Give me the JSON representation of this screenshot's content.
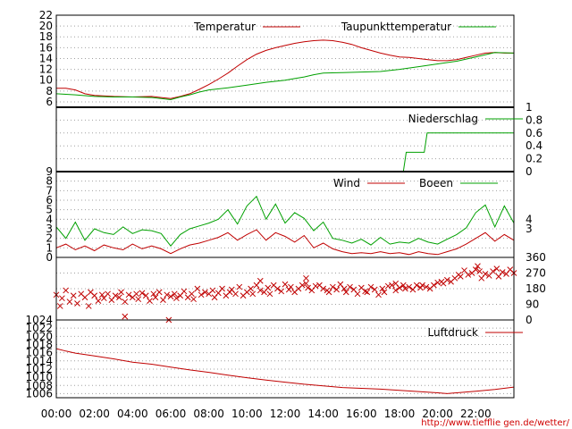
{
  "colors": {
    "background": "#ffffff",
    "axis": "#000000",
    "grid": "#a0a0a0",
    "temperature": "#c00000",
    "dewpoint": "#00a000",
    "precipitation": "#00a000",
    "wind": "#c00000",
    "gusts": "#00a000",
    "direction": "#c00000",
    "pressure": "#c00000",
    "footer": "#d00000"
  },
  "x_axis": {
    "range_hours": [
      0,
      24
    ],
    "tick_labels": [
      "00:00",
      "02:00",
      "04:00",
      "06:00",
      "08:00",
      "10:00",
      "12:00",
      "14:00",
      "16:00",
      "18:00",
      "20:00",
      "22:00"
    ]
  },
  "footer": {
    "url": "http://www.tiefflie gen.de/wetter/"
  },
  "chart_data": [
    {
      "type": "line",
      "panel": "temperature",
      "ylim": [
        5,
        22
      ],
      "left_ticks": [
        "6",
        "8",
        "10",
        "12",
        "14",
        "16",
        "18",
        "20",
        "22"
      ],
      "grid": true,
      "legend": "top-right",
      "series": [
        {
          "name": "Temperatur",
          "x": [
            0,
            0.5,
            1,
            1.5,
            2,
            3,
            4,
            5,
            5.5,
            6,
            6.5,
            7,
            7.5,
            8,
            8.5,
            9,
            9.5,
            10,
            10.5,
            11,
            11.5,
            12,
            12.5,
            13,
            13.5,
            14,
            14.5,
            15,
            15.5,
            16,
            16.5,
            17,
            17.5,
            18,
            18.5,
            19,
            19.5,
            20,
            20.5,
            21,
            21.5,
            22,
            22.5,
            23,
            23.5,
            24
          ],
          "values": [
            8.5,
            8.5,
            8.2,
            7.5,
            7.2,
            7.0,
            6.9,
            7.0,
            6.8,
            6.6,
            7.0,
            7.5,
            8.3,
            9.2,
            10.2,
            11.3,
            12.6,
            13.8,
            14.8,
            15.5,
            16.0,
            16.4,
            16.8,
            17.1,
            17.3,
            17.4,
            17.3,
            17.0,
            16.6,
            16.0,
            15.5,
            15.0,
            14.6,
            14.3,
            14.2,
            14.0,
            13.8,
            13.6,
            13.6,
            13.8,
            14.2,
            14.6,
            15.0,
            15.1,
            15.0,
            15.0
          ]
        },
        {
          "name": "Taupunkttemperatur",
          "x": [
            0,
            1,
            2,
            3,
            4,
            5,
            5.5,
            6,
            6.5,
            7,
            7.5,
            8,
            9,
            10,
            11,
            12,
            12.5,
            13,
            13.5,
            14,
            15,
            16,
            17,
            18,
            19,
            20,
            21,
            22,
            23,
            24
          ],
          "values": [
            7.5,
            7.3,
            7.0,
            6.9,
            6.9,
            6.8,
            6.6,
            6.4,
            6.9,
            7.3,
            7.8,
            8.2,
            8.6,
            9.1,
            9.6,
            10.0,
            10.3,
            10.6,
            11.0,
            11.3,
            11.4,
            11.5,
            11.6,
            12.0,
            12.5,
            13.0,
            13.5,
            14.3,
            15.1,
            15.0
          ]
        }
      ]
    },
    {
      "type": "line",
      "panel": "precipitation",
      "ylim": [
        0,
        1
      ],
      "right_ticks": [
        "0",
        "0.2",
        "0.4",
        "0.6",
        "0.8",
        "1"
      ],
      "grid": true,
      "legend": "top-right",
      "series": [
        {
          "name": "Niederschlag",
          "x": [
            0,
            18.2,
            18.35,
            19.3,
            19.45,
            24
          ],
          "values": [
            0,
            0,
            0.3,
            0.3,
            0.6,
            0.6
          ]
        }
      ]
    },
    {
      "type": "line",
      "panel": "wind",
      "ylim": [
        0,
        9
      ],
      "left_ticks": [
        "0",
        "1",
        "2",
        "3",
        "4",
        "5",
        "6",
        "7",
        "8",
        "9"
      ],
      "right_ticks": [
        "3",
        "4"
      ],
      "grid": true,
      "legend": "top-right",
      "series": [
        {
          "name": "Wind",
          "x": [
            0,
            0.5,
            1,
            1.5,
            2,
            2.5,
            3,
            3.5,
            4,
            4.5,
            5,
            5.5,
            6,
            6.5,
            7,
            7.5,
            8,
            8.5,
            9,
            9.5,
            10,
            10.5,
            11,
            11.5,
            12,
            12.5,
            13,
            13.5,
            14,
            14.5,
            15,
            15.5,
            16,
            16.5,
            17,
            17.5,
            18,
            18.5,
            19,
            19.5,
            20,
            20.5,
            21,
            21.5,
            22,
            22.5,
            23,
            23.5,
            24
          ],
          "values": [
            1.0,
            1.4,
            0.8,
            1.2,
            0.7,
            1.3,
            1.0,
            0.8,
            1.4,
            0.9,
            1.2,
            0.9,
            0.4,
            0.9,
            1.3,
            1.5,
            1.8,
            2.1,
            2.6,
            1.8,
            2.4,
            2.9,
            1.8,
            2.6,
            2.2,
            1.6,
            2.3,
            1.0,
            1.5,
            0.9,
            0.6,
            0.4,
            0.5,
            0.4,
            0.6,
            0.4,
            0.5,
            0.3,
            0.6,
            0.4,
            0.3,
            0.6,
            0.9,
            1.4,
            2.0,
            2.6,
            1.7,
            2.4,
            1.8
          ]
        },
        {
          "name": "Boeen",
          "x": [
            0,
            0.5,
            1,
            1.5,
            2,
            2.5,
            3,
            3.5,
            4,
            4.5,
            5,
            5.5,
            6,
            6.5,
            7,
            7.5,
            8,
            8.5,
            9,
            9.5,
            10,
            10.5,
            11,
            11.5,
            12,
            12.5,
            13,
            13.5,
            14,
            14.5,
            15,
            15.5,
            16,
            16.5,
            17,
            17.5,
            18,
            18.5,
            19,
            19.5,
            20,
            20.5,
            21,
            21.5,
            22,
            22.5,
            23,
            23.5,
            24
          ],
          "values": [
            3.2,
            2.0,
            3.7,
            1.8,
            3.0,
            2.6,
            2.4,
            3.2,
            2.5,
            2.9,
            2.8,
            2.5,
            1.2,
            2.4,
            3.0,
            3.3,
            3.6,
            4.0,
            5.0,
            3.5,
            5.4,
            6.4,
            4.0,
            5.6,
            3.6,
            4.7,
            4.1,
            2.8,
            3.7,
            2.0,
            1.8,
            1.5,
            1.9,
            1.3,
            2.1,
            1.4,
            1.6,
            1.5,
            2.0,
            1.6,
            1.4,
            1.9,
            2.4,
            3.1,
            4.7,
            5.5,
            3.2,
            5.4,
            3.6
          ]
        }
      ]
    },
    {
      "type": "scatter",
      "panel": "wind direction",
      "ylim": [
        0,
        360
      ],
      "right_ticks": [
        "0",
        "90",
        "180",
        "270",
        "360"
      ],
      "grid": true,
      "series": [
        {
          "x": [
            0.0,
            0.2,
            0.3,
            0.5,
            0.7,
            0.9,
            1.1,
            1.3,
            1.5,
            1.7,
            1.8,
            2.0,
            2.2,
            2.4,
            2.5,
            2.7,
            2.9,
            3.1,
            3.3,
            3.4,
            3.6,
            3.8,
            4.0,
            4.2,
            4.3,
            4.5,
            4.7,
            4.9,
            5.1,
            5.2,
            5.4,
            5.6,
            5.8,
            6.0,
            6.2,
            6.3,
            6.5,
            6.7,
            6.9,
            7.1,
            7.2,
            7.4,
            7.6,
            7.8,
            8.0,
            8.2,
            8.3,
            8.5,
            8.7,
            8.9,
            9.1,
            9.2,
            9.4,
            9.6,
            9.8,
            10.0,
            10.2,
            10.3,
            10.5,
            10.7,
            10.9,
            11.1,
            11.2,
            11.4,
            11.6,
            11.8,
            12.0,
            12.2,
            12.3,
            12.5,
            12.7,
            12.9,
            13.1,
            13.2,
            13.4,
            13.6,
            13.8,
            14.0,
            14.2,
            14.3,
            14.5,
            14.7,
            14.9,
            15.1,
            15.2,
            15.4,
            15.6,
            15.8,
            16.0,
            16.2,
            16.3,
            16.5,
            16.7,
            16.9,
            17.1,
            17.2,
            17.4,
            17.6,
            17.8,
            18.0,
            18.2,
            18.3,
            18.5,
            18.7,
            18.9,
            19.1,
            19.2,
            19.4,
            19.6,
            19.8,
            20.0,
            20.2,
            20.3,
            20.5,
            20.7,
            20.9,
            21.1,
            21.2,
            21.4,
            21.6,
            21.8,
            22.0,
            22.2,
            22.3,
            22.5,
            22.7,
            22.9,
            23.1,
            23.2,
            23.4,
            23.6,
            23.8,
            24.0,
            3.6,
            5.9,
            10.7,
            13.1,
            17.8,
            22.1
          ],
          "values": [
            145,
            80,
            125,
            170,
            105,
            140,
            95,
            150,
            130,
            80,
            160,
            140,
            110,
            145,
            125,
            150,
            115,
            140,
            130,
            160,
            105,
            145,
            130,
            150,
            120,
            155,
            140,
            110,
            150,
            130,
            160,
            115,
            145,
            135,
            150,
            125,
            140,
            165,
            130,
            150,
            120,
            180,
            145,
            160,
            150,
            170,
            130,
            155,
            180,
            140,
            160,
            175,
            150,
            190,
            140,
            160,
            180,
            150,
            200,
            170,
            160,
            185,
            150,
            200,
            180,
            165,
            205,
            175,
            190,
            160,
            180,
            200,
            210,
            185,
            170,
            195,
            200,
            180,
            170,
            160,
            190,
            175,
            205,
            180,
            160,
            190,
            175,
            150,
            185,
            165,
            160,
            190,
            175,
            145,
            180,
            160,
            195,
            200,
            170,
            185,
            200,
            180,
            190,
            175,
            200,
            185,
            200,
            190,
            180,
            200,
            215,
            220,
            210,
            230,
            220,
            240,
            260,
            250,
            285,
            260,
            270,
            290,
            280,
            240,
            265,
            255,
            280,
            295,
            250,
            275,
            265,
            290,
            270,
            20,
            0,
            225,
            240,
            210,
            310
          ]
        }
      ]
    },
    {
      "type": "line",
      "panel": "pressure",
      "ylim": [
        1005,
        1024
      ],
      "left_ticks": [
        "1006",
        "1008",
        "1010",
        "1012",
        "1014",
        "1016",
        "1018",
        "1020",
        "1022",
        "1024"
      ],
      "grid": true,
      "legend": "top-right",
      "series": [
        {
          "name": "Luftdruck",
          "x": [
            0,
            0.5,
            1,
            2,
            3,
            4,
            5,
            6,
            7,
            8,
            9,
            10,
            11,
            12,
            13,
            14,
            15,
            16,
            17,
            18,
            19,
            20,
            20.5,
            21,
            22,
            23,
            24
          ],
          "values": [
            1017.0,
            1016.4,
            1015.9,
            1015.2,
            1014.5,
            1013.7,
            1013.2,
            1012.5,
            1011.8,
            1011.2,
            1010.5,
            1009.9,
            1009.3,
            1008.8,
            1008.3,
            1007.9,
            1007.5,
            1007.3,
            1007.1,
            1006.8,
            1006.5,
            1006.2,
            1006.0,
            1006.2,
            1006.6,
            1007.0,
            1007.6
          ]
        }
      ]
    }
  ]
}
